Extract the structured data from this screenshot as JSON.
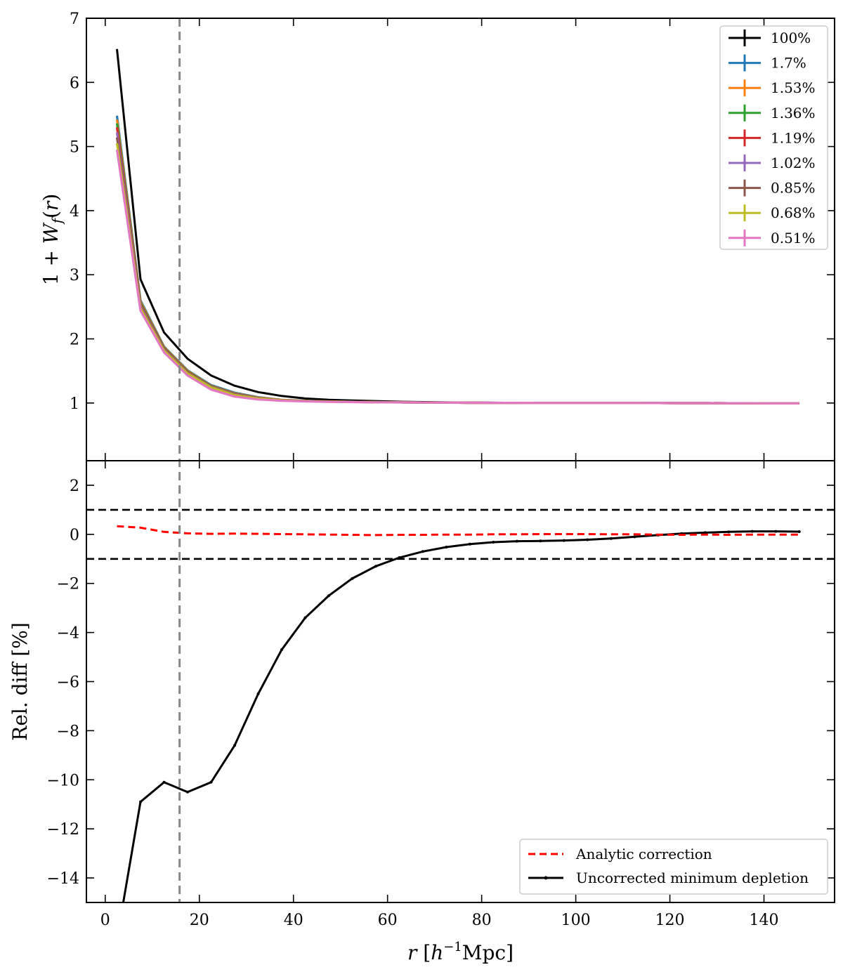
{
  "chart_data": [
    {
      "type": "line",
      "panel": "top",
      "ylabel": "1 + W_f(r)",
      "xlim": [
        -4,
        155
      ],
      "ylim": [
        0.1,
        7
      ],
      "xticks": [
        0,
        20,
        40,
        60,
        80,
        100,
        120,
        140
      ],
      "yticks": [
        1,
        2,
        3,
        4,
        5,
        6,
        7
      ],
      "vline_x": 15.8,
      "legend_position": "top-right",
      "x": [
        2.5,
        7.5,
        12.5,
        17.5,
        22.5,
        27.5,
        32.5,
        37.5,
        42.5,
        47.5,
        52.5,
        57.5,
        62.5,
        67.5,
        72.5,
        77.5,
        82.5,
        87.5,
        92.5,
        97.5,
        102.5,
        107.5,
        112.5,
        117.5,
        122.5,
        127.5,
        132.5,
        137.5,
        142.5,
        147.5
      ],
      "series": [
        {
          "name": "100%",
          "color": "#000000",
          "values": [
            6.52,
            2.93,
            2.1,
            1.69,
            1.43,
            1.27,
            1.17,
            1.11,
            1.07,
            1.05,
            1.04,
            1.03,
            1.02,
            1.015,
            1.01,
            1.008,
            1.005,
            1.003,
            1.002,
            1.0,
            1.0,
            1.0,
            1.0,
            1.0,
            0.998,
            0.998,
            0.997,
            0.996,
            0.995,
            0.995
          ]
        },
        {
          "name": "1.7%",
          "color": "#1f77b4",
          "values": [
            5.48,
            2.6,
            1.88,
            1.51,
            1.28,
            1.16,
            1.09,
            1.05,
            1.035,
            1.025,
            1.02,
            1.015,
            1.01,
            1.008,
            1.006,
            1.004,
            1.003,
            1.002,
            1.0,
            1.0,
            1.0,
            1.0,
            1.0,
            0.999,
            0.998,
            0.998,
            0.997,
            0.996,
            0.995,
            0.995
          ]
        },
        {
          "name": "1.53%",
          "color": "#ff7f0e",
          "values": [
            5.42,
            2.58,
            1.87,
            1.5,
            1.27,
            1.15,
            1.085,
            1.048,
            1.033,
            1.024,
            1.019,
            1.014,
            1.01,
            1.008,
            1.006,
            1.004,
            1.003,
            1.002,
            1.0,
            1.0,
            1.0,
            1.0,
            1.0,
            0.999,
            0.998,
            0.998,
            0.997,
            0.996,
            0.995,
            0.995
          ]
        },
        {
          "name": "1.36%",
          "color": "#2ca02c",
          "values": [
            5.36,
            2.56,
            1.86,
            1.49,
            1.265,
            1.145,
            1.08,
            1.046,
            1.032,
            1.023,
            1.018,
            1.013,
            1.01,
            1.008,
            1.006,
            1.004,
            1.003,
            1.002,
            1.0,
            1.0,
            1.0,
            1.0,
            1.0,
            0.999,
            0.998,
            0.998,
            0.997,
            0.996,
            0.995,
            0.995
          ]
        },
        {
          "name": "1.19%",
          "color": "#d62728",
          "values": [
            5.3,
            2.54,
            1.85,
            1.48,
            1.26,
            1.14,
            1.078,
            1.045,
            1.031,
            1.022,
            1.017,
            1.013,
            1.01,
            1.008,
            1.006,
            1.004,
            1.003,
            1.002,
            1.0,
            1.0,
            1.0,
            1.0,
            1.0,
            0.999,
            0.998,
            0.998,
            0.997,
            0.996,
            0.995,
            0.995
          ]
        },
        {
          "name": "1.02%",
          "color": "#9467bd",
          "values": [
            5.22,
            2.52,
            1.84,
            1.47,
            1.255,
            1.135,
            1.075,
            1.044,
            1.03,
            1.022,
            1.017,
            1.012,
            1.01,
            1.008,
            1.006,
            1.004,
            1.003,
            1.002,
            1.0,
            1.0,
            1.0,
            1.0,
            1.0,
            0.999,
            0.998,
            0.998,
            0.997,
            0.996,
            0.995,
            0.995
          ]
        },
        {
          "name": "0.85%",
          "color": "#8c564b",
          "values": [
            5.14,
            2.5,
            1.83,
            1.465,
            1.25,
            1.13,
            1.072,
            1.043,
            1.03,
            1.021,
            1.016,
            1.012,
            1.01,
            1.008,
            1.006,
            1.004,
            1.003,
            1.002,
            1.0,
            1.0,
            1.0,
            1.0,
            1.0,
            0.999,
            0.998,
            0.998,
            0.997,
            0.996,
            0.995,
            0.995
          ]
        },
        {
          "name": "0.68%",
          "color": "#bcbd22",
          "values": [
            5.05,
            2.48,
            1.82,
            1.46,
            1.245,
            1.125,
            1.07,
            1.042,
            1.029,
            1.021,
            1.016,
            1.012,
            1.01,
            1.008,
            1.006,
            1.004,
            1.003,
            1.002,
            1.0,
            1.0,
            1.0,
            1.0,
            1.0,
            0.999,
            0.998,
            0.998,
            0.997,
            0.996,
            0.995,
            0.995
          ]
        },
        {
          "name": "0.51%",
          "color": "#e377c2",
          "values": [
            4.95,
            2.44,
            1.79,
            1.43,
            1.21,
            1.1,
            1.055,
            1.035,
            1.025,
            1.018,
            1.014,
            1.011,
            1.009,
            1.007,
            1.005,
            1.004,
            1.003,
            1.002,
            1.0,
            1.0,
            1.0,
            1.0,
            1.0,
            0.999,
            0.998,
            0.998,
            0.997,
            0.996,
            0.995,
            0.995
          ]
        }
      ]
    },
    {
      "type": "line",
      "panel": "bottom",
      "xlabel": "r [h^-1 Mpc]",
      "ylabel": "Rel. diff [%]",
      "xlim": [
        -4,
        155
      ],
      "ylim": [
        -15,
        3
      ],
      "xticks": [
        0,
        20,
        40,
        60,
        80,
        100,
        120,
        140
      ],
      "yticks": [
        2,
        0,
        -2,
        -4,
        -6,
        -8,
        -10,
        -12,
        -14
      ],
      "hlines": [
        1,
        -1
      ],
      "vline_x": 15.8,
      "legend_position": "bottom-right",
      "series": [
        {
          "name": "Analytic correction",
          "color": "#ff0000",
          "style": "dashed",
          "x": [
            2.5,
            7.5,
            12.5,
            17.5,
            22.5,
            27.5,
            32.5,
            37.5,
            42.5,
            47.5,
            52.5,
            57.5,
            62.5,
            67.5,
            72.5,
            77.5,
            82.5,
            87.5,
            92.5,
            97.5,
            102.5,
            107.5,
            112.5,
            117.5,
            122.5,
            127.5,
            132.5,
            137.5,
            142.5,
            147.5
          ],
          "values": [
            0.33,
            0.27,
            0.1,
            0.04,
            0.02,
            0.03,
            0.02,
            0.01,
            0.0,
            -0.01,
            -0.02,
            -0.03,
            -0.02,
            -0.02,
            -0.01,
            -0.01,
            0.0,
            0.0,
            0.01,
            0.01,
            0.01,
            0.0,
            0.0,
            -0.01,
            -0.02,
            -0.01,
            -0.02,
            -0.01,
            -0.01,
            -0.01
          ]
        },
        {
          "name": "Uncorrected minimum depletion",
          "color": "#000000",
          "style": "solid",
          "x": [
            2.5,
            7.5,
            12.5,
            17.5,
            22.5,
            27.5,
            32.5,
            37.5,
            42.5,
            47.5,
            52.5,
            57.5,
            62.5,
            67.5,
            72.5,
            77.5,
            82.5,
            87.5,
            92.5,
            97.5,
            102.5,
            107.5,
            112.5,
            117.5,
            122.5,
            127.5,
            132.5,
            137.5,
            142.5,
            147.5
          ],
          "values": [
            -16.5,
            -10.9,
            -10.1,
            -10.5,
            -10.1,
            -8.6,
            -6.5,
            -4.7,
            -3.4,
            -2.5,
            -1.8,
            -1.3,
            -0.95,
            -0.7,
            -0.52,
            -0.4,
            -0.32,
            -0.28,
            -0.27,
            -0.25,
            -0.22,
            -0.17,
            -0.1,
            -0.03,
            0.03,
            0.07,
            0.1,
            0.12,
            0.12,
            0.11
          ]
        }
      ]
    }
  ]
}
